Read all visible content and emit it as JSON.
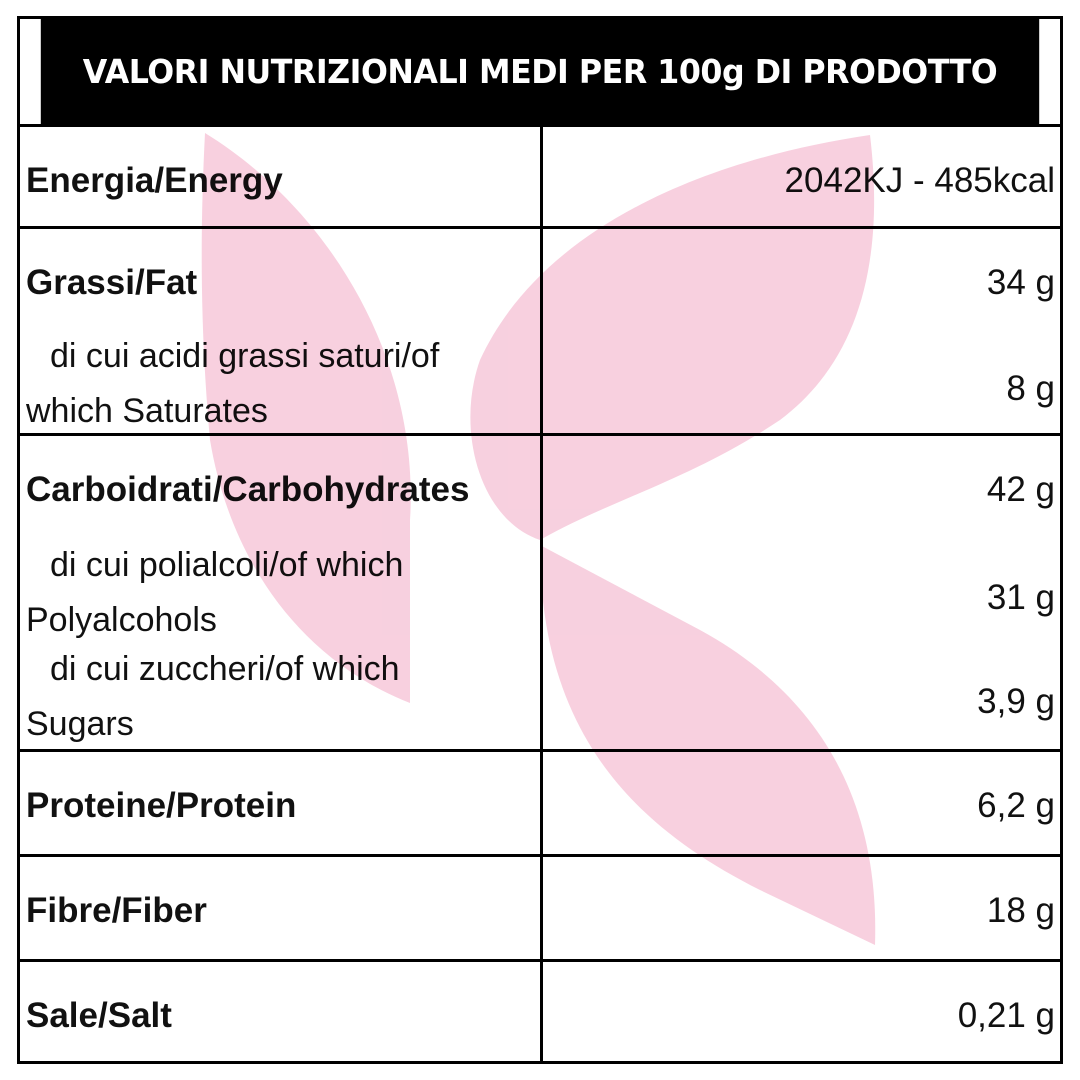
{
  "header": {
    "title": "VALORI NUTRIZIONALI MEDI PER 100g DI PRODOTTO"
  },
  "colors": {
    "header_bg": "#000000",
    "header_text": "#ffffff",
    "leaf": "#f7cbdc",
    "border": "#000000"
  },
  "rows": [
    {
      "label": "Energia/Energy",
      "value": "2042KJ - 485kcal"
    },
    {
      "label": "Grassi/Fat",
      "value": "34 g",
      "sub": {
        "line1": "di cui acidi grassi saturi/of",
        "line2": "which Saturates",
        "value": "8 g"
      }
    },
    {
      "label": "Carboidrati/Carbohydrates",
      "value": "42 g",
      "sub": [
        {
          "line1": "di cui polialcoli/of which",
          "line2": "Polyalcohols",
          "value": "31 g"
        },
        {
          "line1": "di cui zuccheri/of which",
          "line2": "Sugars",
          "value": "3,9 g"
        }
      ]
    },
    {
      "label": "Proteine/Protein",
      "value": "6,2 g"
    },
    {
      "label": "Fibre/Fiber",
      "value": "18 g"
    },
    {
      "label": "Sale/Salt",
      "value": "0,21 g"
    }
  ]
}
